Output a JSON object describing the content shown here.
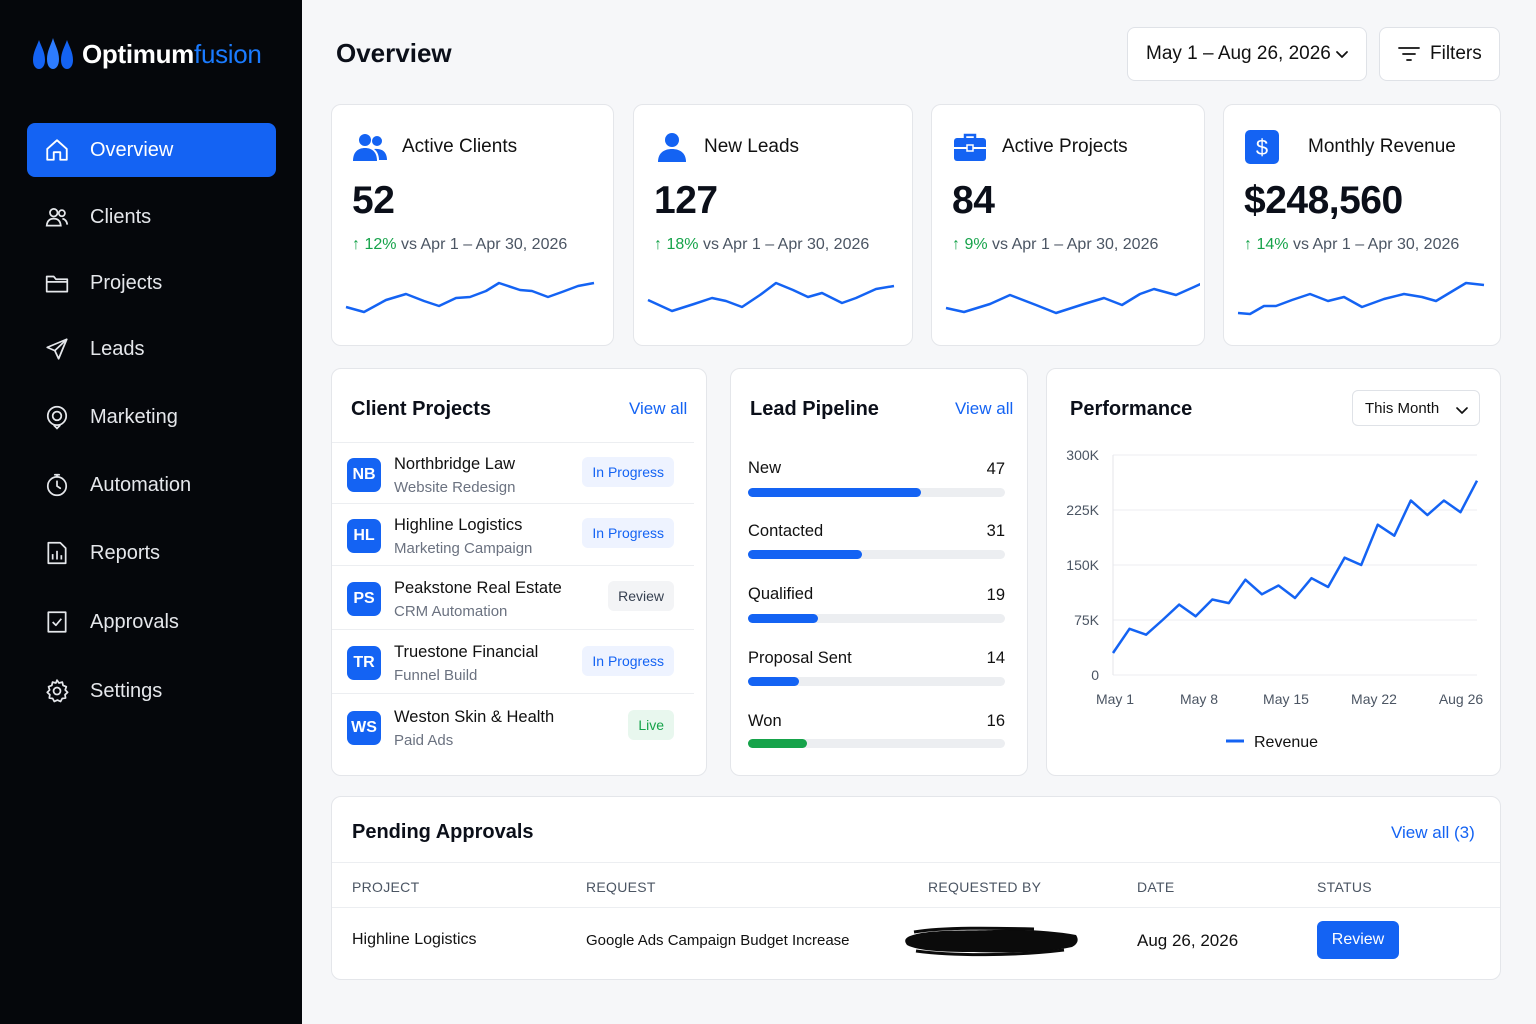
{
  "brand": {
    "name_main": "Optimum",
    "name_accent": "fusion"
  },
  "colors": {
    "sidebar_bg": "#05070b",
    "accent": "#1463f3",
    "positive": "#16a34a",
    "won": "#16a34a"
  },
  "sidebar": {
    "items": [
      {
        "label": "Overview",
        "icon": "home-icon",
        "active": true
      },
      {
        "label": "Clients",
        "icon": "users-icon"
      },
      {
        "label": "Projects",
        "icon": "folder-icon"
      },
      {
        "label": "Leads",
        "icon": "send-icon"
      },
      {
        "label": "Marketing",
        "icon": "target-icon"
      },
      {
        "label": "Automation",
        "icon": "clock-icon"
      },
      {
        "label": "Reports",
        "icon": "report-icon"
      },
      {
        "label": "Approvals",
        "icon": "check-file-icon"
      },
      {
        "label": "Settings",
        "icon": "gear-icon"
      }
    ]
  },
  "header": {
    "title": "Overview",
    "date_range": "May 1 – Aug 26, 2026",
    "filters_label": "Filters"
  },
  "kpis": [
    {
      "label": "Active Clients",
      "value": "52",
      "delta": "12%",
      "comparison": "vs Apr 1 – Apr 30, 2026",
      "icon": "users-icon"
    },
    {
      "label": "New Leads",
      "value": "127",
      "delta": "18%",
      "comparison": "vs Apr 1 – Apr 30, 2026",
      "icon": "user-icon"
    },
    {
      "label": "Active Projects",
      "value": "84",
      "delta": "9%",
      "comparison": "vs Apr 1 – Apr 30, 2026",
      "icon": "briefcase-icon"
    },
    {
      "label": "Monthly Revenue",
      "value": "$248,560",
      "delta": "14%",
      "comparison": "vs Apr 1 – Apr 30, 2026",
      "icon": "dollar-icon"
    }
  ],
  "client_projects": {
    "title": "Client Projects",
    "view_all": "View all",
    "rows": [
      {
        "initials": "NB",
        "name": "Northbridge Law",
        "subtitle": "Website Redesign",
        "status": "In Progress"
      },
      {
        "initials": "HL",
        "name": "Highline Logistics",
        "subtitle": "Marketing Campaign",
        "status": "In Progress"
      },
      {
        "initials": "PS",
        "name": "Peakstone Real Estate",
        "subtitle": "CRM Automation",
        "status": "Review"
      },
      {
        "initials": "TR",
        "name": "Truestone Financial",
        "subtitle": "Funnel Build",
        "status": "In Progress"
      },
      {
        "initials": "WS",
        "name": "Weston Skin & Health",
        "subtitle": "Paid Ads",
        "status": "Live"
      }
    ]
  },
  "lead_pipeline": {
    "title": "Lead Pipeline",
    "view_all": "View all",
    "max": 70,
    "stages": [
      {
        "label": "New",
        "value": 47
      },
      {
        "label": "Contacted",
        "value": 31
      },
      {
        "label": "Qualified",
        "value": 19
      },
      {
        "label": "Proposal Sent",
        "value": 14
      },
      {
        "label": "Won",
        "value": 16
      }
    ]
  },
  "performance": {
    "title": "Performance",
    "period": "This Month"
  },
  "chart_data": {
    "type": "line",
    "title": "Performance",
    "xlabel": "",
    "ylabel": "",
    "x_ticks": [
      "May 1",
      "May 8",
      "May 15",
      "May 22",
      "Aug 26"
    ],
    "y_ticks": [
      "0",
      "75K",
      "150K",
      "225K",
      "300K"
    ],
    "ylim": [
      0,
      300000
    ],
    "grid": true,
    "legend": "bottom",
    "series": [
      {
        "name": "Revenue",
        "color": "#1463f3",
        "values": [
          30000,
          63000,
          55000,
          75000,
          96000,
          80000,
          103000,
          98000,
          130000,
          110000,
          122000,
          105000,
          132000,
          120000,
          160000,
          150000,
          205000,
          190000,
          238000,
          218000,
          238000,
          222000,
          265000
        ]
      }
    ]
  },
  "approvals": {
    "title": "Pending Approvals",
    "view_all": "View all (3)",
    "columns": [
      "PROJECT",
      "REQUEST",
      "REQUESTED BY",
      "DATE",
      "STATUS"
    ],
    "rows": [
      {
        "project": "Highline Logistics",
        "request": "Google Ads Campaign Budget Increase",
        "requested_by": "",
        "date": "Aug 26, 2026",
        "status": "Review"
      }
    ]
  }
}
